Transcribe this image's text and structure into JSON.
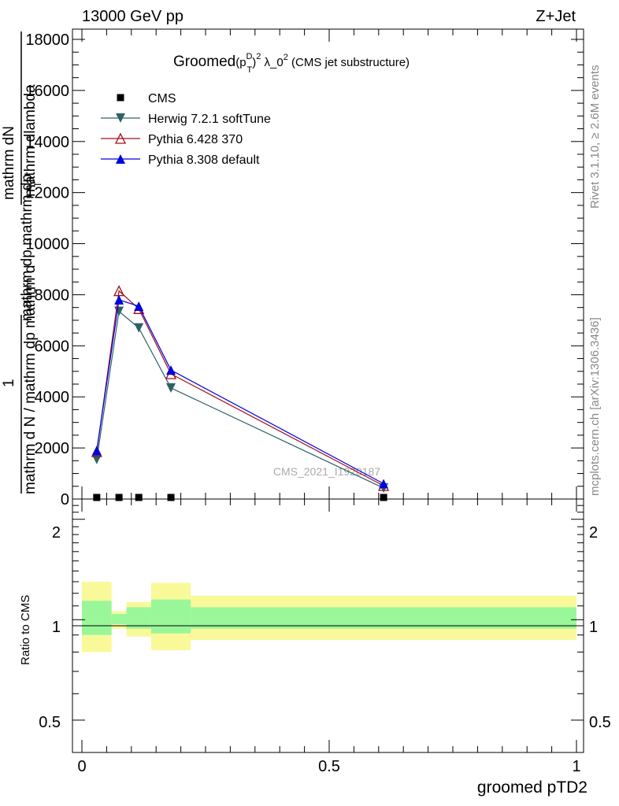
{
  "header": {
    "energy": "13000 GeV pp",
    "process": "Z+Jet",
    "title_main": "Groomed",
    "title_p": "(p",
    "title_D": "D",
    "title_T": "T",
    "title_close": ")",
    "title_exp": "2",
    "title_lambda": " λ_0",
    "title_lexp": "2",
    "title_tail": " (CMS jet substructure)"
  },
  "side": {
    "rivet": "Rivet 3.1.10, ≥ 2.6M events",
    "mcplots": "mcplots.cern.ch [arXiv:1306.3436]"
  },
  "watermark": "CMS_2021_I1920187",
  "ylabel": {
    "top": "mathrm dN",
    "lambda": "mathrm dlambda",
    "middle": "mathrm dp mathrm dp",
    "sub": "T",
    "one": "1",
    "bottom": "mathrm d N / mathrm dp mathrm d"
  },
  "ratio": {
    "ylabel": "Ratio to CMS",
    "yticks": [
      "2",
      "1",
      "0.5"
    ],
    "yticks_right": [
      "2",
      "1",
      "0.5"
    ]
  },
  "xaxis": {
    "label": "groomed pTD2",
    "ticks": [
      "0",
      "0.5",
      "1"
    ]
  },
  "legend": [
    {
      "label": "CMS",
      "color": "#000000",
      "marker": "square"
    },
    {
      "label": "Herwig 7.2.1 softTune",
      "color": "#2e6166",
      "marker": "tri-down"
    },
    {
      "label": "Pythia 6.428 370",
      "color": "#a0101a",
      "marker": "tri-up-open"
    },
    {
      "label": "Pythia 8.308 default",
      "color": "#0000dd",
      "marker": "tri-up"
    }
  ],
  "chart_data": {
    "type": "line",
    "title": "Groomed (p_T^D)^2 λ_0^2 (CMS jet substructure)",
    "xlabel": "groomed pTD2",
    "ylabel": "1 / mathrm d N / mathrm dp mathrm d",
    "xlim": [
      0,
      1
    ],
    "ylim": [
      0,
      18000
    ],
    "yticks": [
      "0",
      "2000",
      "4000",
      "6000",
      "8000",
      "10000",
      "12000",
      "14000",
      "16000",
      "18000"
    ],
    "x": [
      0.03,
      0.075,
      0.115,
      0.18,
      0.61
    ],
    "series": [
      {
        "name": "CMS",
        "values": [
          30,
          30,
          30,
          30,
          30
        ],
        "color": "#000000"
      },
      {
        "name": "Herwig 7.2.1 softTune",
        "values": [
          1550,
          7350,
          6700,
          4350,
          430
        ],
        "color": "#2e6166"
      },
      {
        "name": "Pythia 6.428 370",
        "values": [
          1850,
          8150,
          7450,
          4900,
          520
        ],
        "color": "#a0101a"
      },
      {
        "name": "Pythia 8.308 default",
        "values": [
          1900,
          7800,
          7550,
          5050,
          600
        ],
        "color": "#0000dd"
      }
    ],
    "ratio": {
      "ylim": [
        0.4,
        2.3
      ],
      "bin_edges": [
        0,
        0.06,
        0.09,
        0.14,
        0.22,
        1.0
      ],
      "inner_band": [
        [
          0.9,
          1.14
        ],
        [
          0.97,
          1.04
        ],
        [
          0.94,
          1.09
        ],
        [
          0.91,
          1.15
        ],
        [
          0.94,
          1.09
        ]
      ],
      "outer_band": [
        [
          0.8,
          1.3
        ],
        [
          0.94,
          1.06
        ],
        [
          0.89,
          1.13
        ],
        [
          0.81,
          1.29
        ],
        [
          0.87,
          1.18
        ]
      ],
      "inner_color": "#99f799",
      "outer_color": "#f9f99a"
    }
  }
}
